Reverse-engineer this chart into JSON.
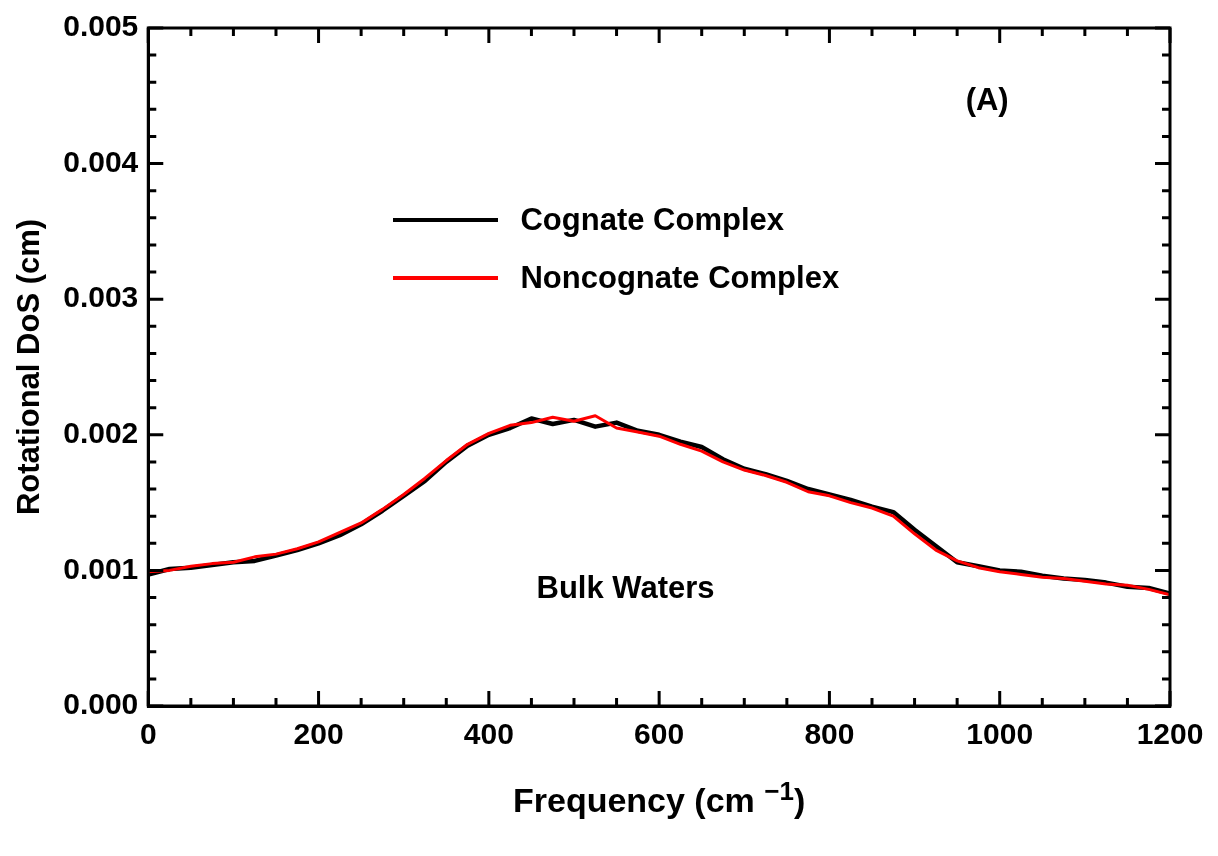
{
  "chart_data": {
    "type": "line",
    "xlabel": "Frequency (cm $^{−1}$)",
    "ylabel": "Rotational DoS (cm)",
    "annotations": [
      "(A)",
      "Bulk Waters"
    ],
    "xlim": [
      0,
      1200
    ],
    "ylim": [
      0,
      0.005
    ],
    "xticks": [
      0,
      {
        "value": 50,
        "label": null
      },
      200,
      {
        "value": 100,
        "label": null
      },
      {
        "value": 150,
        "label": null
      },
      {
        "value": 250,
        "label": null
      },
      {
        "value": 300,
        "label": null
      },
      {
        "value": 350,
        "label": null
      },
      400,
      {
        "value": 450,
        "label": null
      },
      {
        "value": 500,
        "label": null
      },
      {
        "value": 550,
        "label": null
      },
      600,
      {
        "value": 650,
        "label": null
      },
      {
        "value": 700,
        "label": null
      },
      {
        "value": 750,
        "label": null
      },
      800,
      {
        "value": 850,
        "label": null
      },
      {
        "value": 900,
        "label": null
      },
      {
        "value": 950,
        "label": null
      },
      1000,
      {
        "value": 1050,
        "label": null
      },
      {
        "value": 1100,
        "label": null
      },
      {
        "value": 1150,
        "label": null
      },
      1200
    ],
    "yticks": [
      {
        "value": 0,
        "label": "0.000"
      },
      {
        "value": 0.0002,
        "label": null
      },
      {
        "value": 0.0004,
        "label": null
      },
      {
        "value": 0.0006,
        "label": null
      },
      {
        "value": 0.0008,
        "label": null
      },
      0.001,
      {
        "value": 0.0012,
        "label": null
      },
      {
        "value": 0.0014,
        "label": null
      },
      {
        "value": 0.0016,
        "label": null
      },
      {
        "value": 0.0018,
        "label": null
      },
      0.002,
      {
        "value": 0.0022,
        "label": null
      },
      {
        "value": 0.0024,
        "label": null
      },
      {
        "value": 0.0026,
        "label": null
      },
      {
        "value": 0.0028,
        "label": null
      },
      0.003,
      {
        "value": 0.0032,
        "label": null
      },
      {
        "value": 0.0034,
        "label": null
      },
      {
        "value": 0.0036,
        "label": null
      },
      {
        "value": 0.0038,
        "label": null
      },
      0.004,
      {
        "value": 0.0042,
        "label": null
      },
      {
        "value": 0.0044,
        "label": null
      },
      {
        "value": 0.0046,
        "label": null
      },
      {
        "value": 0.0048,
        "label": null
      },
      0.005
    ],
    "x": [
      0,
      25,
      50,
      75,
      100,
      125,
      150,
      175,
      200,
      225,
      250,
      275,
      300,
      325,
      350,
      375,
      400,
      425,
      450,
      475,
      500,
      525,
      550,
      575,
      600,
      625,
      650,
      675,
      700,
      725,
      750,
      775,
      800,
      825,
      850,
      875,
      900,
      925,
      950,
      975,
      1000,
      1025,
      1050,
      1075,
      1100,
      1125,
      1150,
      1175,
      1200
    ],
    "grid": false,
    "legend": "top",
    "marker": "none",
    "line_style": "solid",
    "series": [
      {
        "name": "Cognate Complex",
        "color": "#000000",
        "values": [
          0.00097,
          0.00101,
          0.00102,
          0.00104,
          0.00106,
          0.00107,
          0.00111,
          0.00115,
          0.0012,
          0.00126,
          0.00134,
          0.00144,
          0.00155,
          0.00166,
          0.0018,
          0.00192,
          0.002,
          0.00205,
          0.00212,
          0.00208,
          0.00211,
          0.00206,
          0.00209,
          0.00203,
          0.002,
          0.00195,
          0.00191,
          0.00182,
          0.00175,
          0.00171,
          0.00166,
          0.0016,
          0.00156,
          0.00152,
          0.00147,
          0.00143,
          0.0013,
          0.00118,
          0.00106,
          0.00103,
          0.001,
          0.00099,
          0.00096,
          0.00094,
          0.00093,
          0.00091,
          0.00088,
          0.00087,
          0.00083
        ]
      },
      {
        "name": "Noncognate Complex",
        "color": "#ff0000",
        "values": [
          0.00099,
          0.001,
          0.00103,
          0.00105,
          0.00106,
          0.0011,
          0.00112,
          0.00116,
          0.00121,
          0.00128,
          0.00135,
          0.00145,
          0.00156,
          0.00168,
          0.00181,
          0.00193,
          0.00201,
          0.00207,
          0.00209,
          0.00213,
          0.0021,
          0.00214,
          0.00205,
          0.00202,
          0.00199,
          0.00193,
          0.00188,
          0.0018,
          0.00174,
          0.0017,
          0.00165,
          0.00158,
          0.00155,
          0.0015,
          0.00146,
          0.0014,
          0.00127,
          0.00115,
          0.00107,
          0.00102,
          0.00099,
          0.00097,
          0.00095,
          0.00094,
          0.00092,
          0.0009,
          0.00089,
          0.00086,
          0.00082
        ]
      }
    ]
  }
}
